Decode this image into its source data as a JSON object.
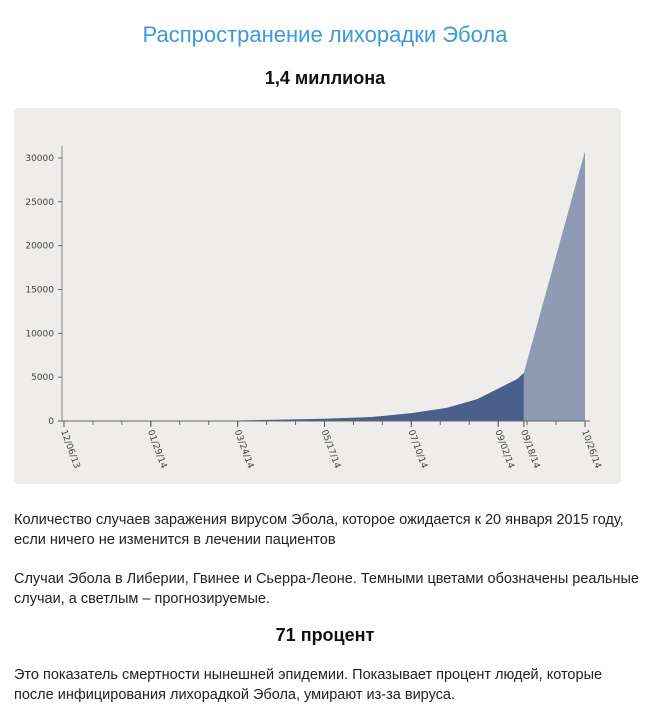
{
  "title": "Распространение лихорадки Эбола",
  "subtitle1": "1,4 миллиона",
  "paragraph1": "Количество случаев заражения вирусом Эбола, которое ожидается к 20 января 2015 году, если ничего не изменится в лечении пациентов",
  "paragraph2": "Случаи Эбола в Либерии, Гвинее и Сьерра-Леоне. Темными цветами обозначены реальные случаи, а светлым – прогнозируемые.",
  "subtitle2": "71 процент",
  "paragraph3": "Это показатель смертности нынешней эпидемии. Показывает процент людей, которые после инфицирования лихорадкой Эбола, умирают из-за вируса.",
  "chart_data": {
    "type": "area",
    "ylim": [
      0,
      30000
    ],
    "yticks": [
      "0",
      "5000",
      "10000",
      "15000",
      "20000",
      "25000",
      "30000"
    ],
    "xticks": [
      "12/06/13",
      "01/29/14",
      "03/24/14",
      "05/17/14",
      "07/10/14",
      "09/02/14",
      "09/18/14",
      "10/26/14"
    ],
    "grid": false,
    "series": [
      {
        "kind": "actual",
        "color": "#4a5f8c",
        "points": [
          [
            "12/06/13",
            0
          ],
          [
            "01/29/14",
            10
          ],
          [
            "03/24/14",
            60
          ],
          [
            "05/17/14",
            250
          ],
          [
            "06/15/14",
            450
          ],
          [
            "07/10/14",
            900
          ],
          [
            "08/01/14",
            1500
          ],
          [
            "08/20/14",
            2500
          ],
          [
            "09/02/14",
            3700
          ],
          [
            "09/14/14",
            4800
          ],
          [
            "09/18/14",
            5500
          ]
        ]
      },
      {
        "kind": "projected",
        "color": "#8e9bb3",
        "points": [
          [
            "09/18/14",
            5500
          ],
          [
            "10/26/14",
            30800
          ]
        ]
      }
    ]
  }
}
